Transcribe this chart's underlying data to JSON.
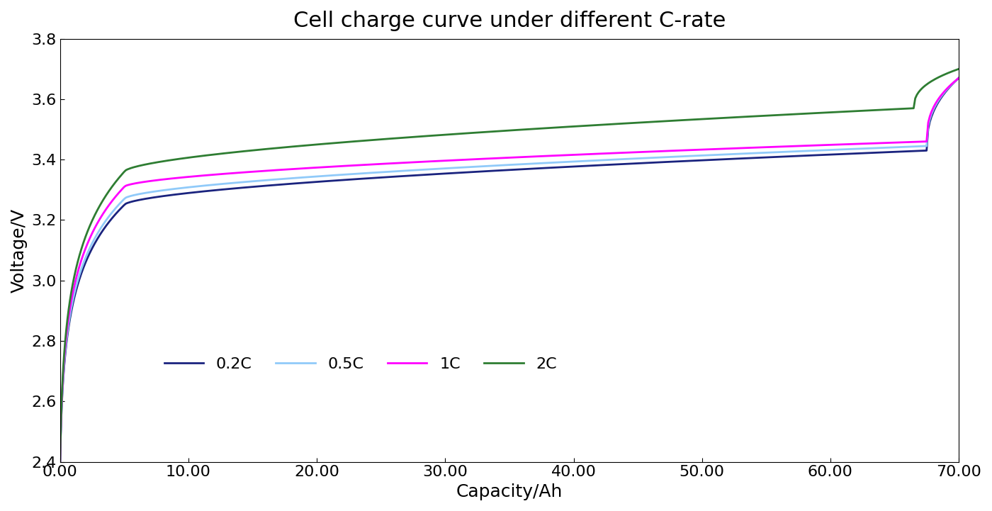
{
  "title": "Cell charge curve under different C-rate",
  "xlabel": "Capacity/Ah",
  "ylabel": "Voltage/V",
  "xlim": [
    0,
    70
  ],
  "ylim": [
    2.4,
    3.8
  ],
  "xticks": [
    0.0,
    10.0,
    20.0,
    30.0,
    40.0,
    50.0,
    60.0,
    70.0
  ],
  "yticks": [
    2.4,
    2.6,
    2.8,
    3.0,
    3.2,
    3.4,
    3.6,
    3.8
  ],
  "xtick_labels": [
    "0.00",
    "10.00",
    "20.00",
    "30.00",
    "40.00",
    "50.00",
    "60.00",
    "70.00"
  ],
  "ytick_labels": [
    "2.4",
    "2.6",
    "2.8",
    "3.0",
    "3.2",
    "3.4",
    "3.6",
    "3.8"
  ],
  "curves": [
    {
      "label": "0.2C",
      "color": "#1a237e",
      "linewidth": 2.0
    },
    {
      "label": "0.5C",
      "color": "#90CAF9",
      "linewidth": 2.0
    },
    {
      "label": "1C",
      "color": "#FF00FF",
      "linewidth": 2.0
    },
    {
      "label": "2C",
      "color": "#2E7D32",
      "linewidth": 2.0
    }
  ],
  "background_color": "#ffffff",
  "title_fontsize": 22,
  "label_fontsize": 18,
  "tick_fontsize": 16,
  "legend_fontsize": 16
}
